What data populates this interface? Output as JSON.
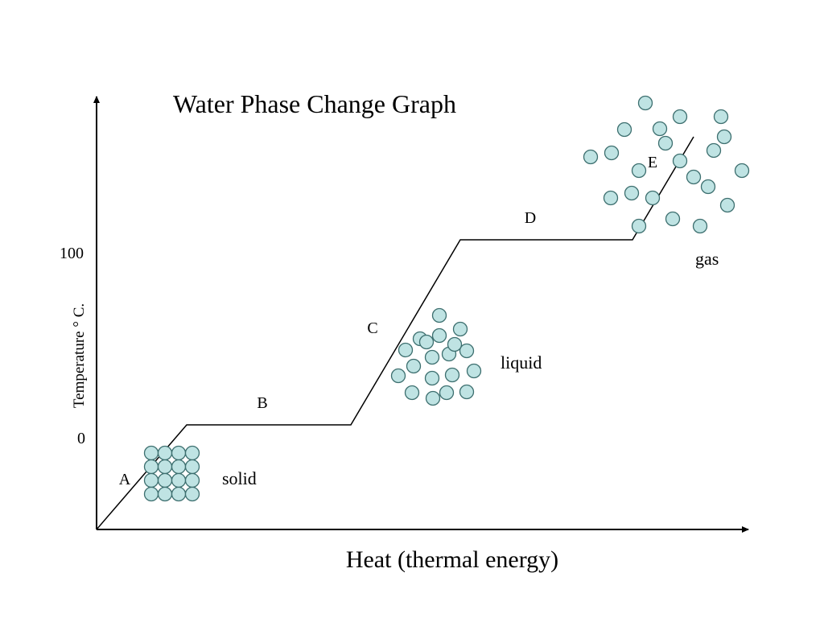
{
  "diagram": {
    "title": "Water Phase Change Graph",
    "x_axis_label": "Heat (thermal energy)",
    "y_axis_label": "Temperature ° C.",
    "y_ticks": [
      "100",
      "0"
    ],
    "segments": [
      "A",
      "B",
      "C",
      "D",
      "E"
    ],
    "phases": {
      "solid": "solid",
      "liquid": "liquid",
      "gas": "gas"
    },
    "colors": {
      "particle_fill": "#bfe3e3",
      "particle_stroke": "#3d6f6f",
      "line": "#000000"
    },
    "particle_counts": {
      "solid": 16,
      "liquid": 19,
      "gas": 22
    }
  }
}
